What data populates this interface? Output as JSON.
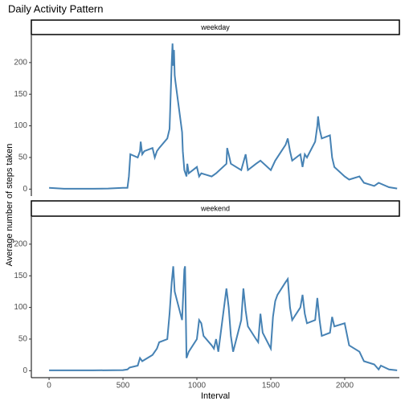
{
  "chart_data": {
    "type": "line",
    "title": "Daily Activity Pattern",
    "xlabel": "Interval",
    "ylabel": "Average number of steps taken",
    "color": "#4682b4",
    "grid": false,
    "xlim": [
      -120,
      2370
    ],
    "xticks": [
      0,
      500,
      1000,
      1500,
      2000
    ],
    "ylim": [
      -11,
      243
    ],
    "yticks": [
      0,
      50,
      100,
      150,
      200
    ],
    "panels": [
      {
        "name": "weekday",
        "x": [
          0,
          100,
          200,
          300,
          400,
          500,
          530,
          540,
          550,
          600,
          615,
          620,
          630,
          645,
          700,
          715,
          730,
          745,
          800,
          815,
          830,
          835,
          840,
          845,
          850,
          855,
          900,
          905,
          915,
          930,
          935,
          945,
          1000,
          1015,
          1030,
          1100,
          1130,
          1200,
          1205,
          1215,
          1230,
          1300,
          1330,
          1345,
          1400,
          1430,
          1500,
          1530,
          1600,
          1615,
          1630,
          1645,
          1700,
          1715,
          1730,
          1745,
          1800,
          1815,
          1820,
          1830,
          1845,
          1900,
          1915,
          1930,
          2000,
          2030,
          2100,
          2130,
          2200,
          2230,
          2300,
          2355
        ],
        "values": [
          2,
          0.5,
          0.5,
          0.5,
          1,
          2,
          2,
          20,
          55,
          50,
          60,
          75,
          55,
          60,
          65,
          50,
          60,
          65,
          80,
          95,
          200,
          230,
          195,
          220,
          180,
          170,
          90,
          60,
          30,
          20,
          40,
          25,
          35,
          20,
          25,
          20,
          25,
          40,
          65,
          55,
          40,
          30,
          55,
          30,
          40,
          45,
          30,
          45,
          70,
          80,
          60,
          45,
          55,
          35,
          55,
          50,
          75,
          100,
          115,
          95,
          80,
          85,
          50,
          35,
          20,
          15,
          20,
          10,
          5,
          10,
          3,
          1
        ]
      },
      {
        "name": "weekend",
        "x": [
          0,
          100,
          300,
          500,
          530,
          545,
          600,
          615,
          630,
          700,
          730,
          745,
          800,
          815,
          830,
          840,
          850,
          900,
          915,
          920,
          930,
          945,
          1000,
          1015,
          1030,
          1045,
          1100,
          1115,
          1130,
          1145,
          1200,
          1215,
          1230,
          1245,
          1300,
          1315,
          1330,
          1345,
          1400,
          1415,
          1430,
          1445,
          1500,
          1515,
          1530,
          1545,
          1600,
          1615,
          1630,
          1645,
          1700,
          1715,
          1730,
          1745,
          1800,
          1815,
          1830,
          1845,
          1900,
          1915,
          1930,
          2000,
          2030,
          2100,
          2130,
          2200,
          2230,
          2245,
          2300,
          2355
        ],
        "values": [
          0.5,
          0.5,
          0.5,
          1,
          2,
          5,
          8,
          20,
          15,
          25,
          35,
          45,
          50,
          90,
          140,
          165,
          125,
          80,
          160,
          165,
          20,
          30,
          50,
          80,
          75,
          55,
          40,
          35,
          50,
          30,
          130,
          100,
          55,
          30,
          80,
          130,
          95,
          70,
          50,
          45,
          90,
          60,
          35,
          85,
          110,
          120,
          140,
          145,
          100,
          80,
          100,
          120,
          90,
          75,
          80,
          115,
          80,
          55,
          60,
          85,
          70,
          75,
          40,
          30,
          15,
          10,
          2,
          8,
          2,
          0.5
        ]
      }
    ]
  }
}
